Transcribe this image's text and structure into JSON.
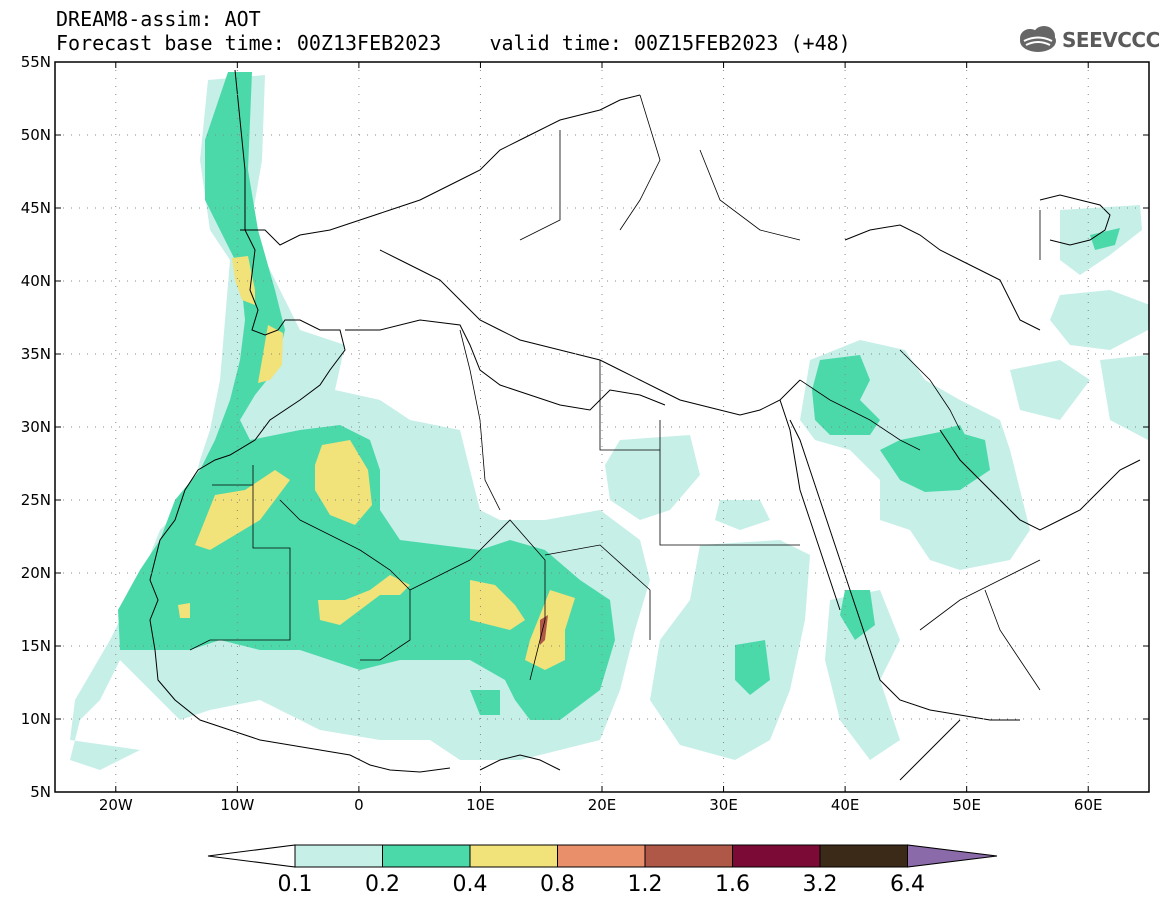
{
  "header": {
    "line1": "DREAM8-assim: AOT",
    "line2": "Forecast base time: 00Z13FEB2023    valid time: 00Z15FEB2023 (+48)",
    "logo_text": "SEEVCCC"
  },
  "map": {
    "projection": "cylindrical",
    "lon_range": [
      -25,
      65
    ],
    "lat_range": [
      5,
      55
    ],
    "lat_ticks": [
      "5N",
      "10N",
      "15N",
      "20N",
      "25N",
      "30N",
      "35N",
      "40N",
      "45N",
      "50N",
      "55N"
    ],
    "lon_ticks": [
      "20W",
      "10W",
      "0",
      "10E",
      "20E",
      "30E",
      "40E",
      "50E",
      "60E"
    ],
    "grid": "dotted"
  },
  "colorbar": {
    "labels": [
      "0.1",
      "0.2",
      "0.4",
      "0.8",
      "1.2",
      "1.6",
      "3.2",
      "6.4"
    ],
    "colors": [
      "#ffffff",
      "#c6efe8",
      "#4cd9aa",
      "#f2e27a",
      "#e9906a",
      "#b05848",
      "#7b0a36",
      "#3c2a18",
      "#8a6aa8"
    ]
  }
}
